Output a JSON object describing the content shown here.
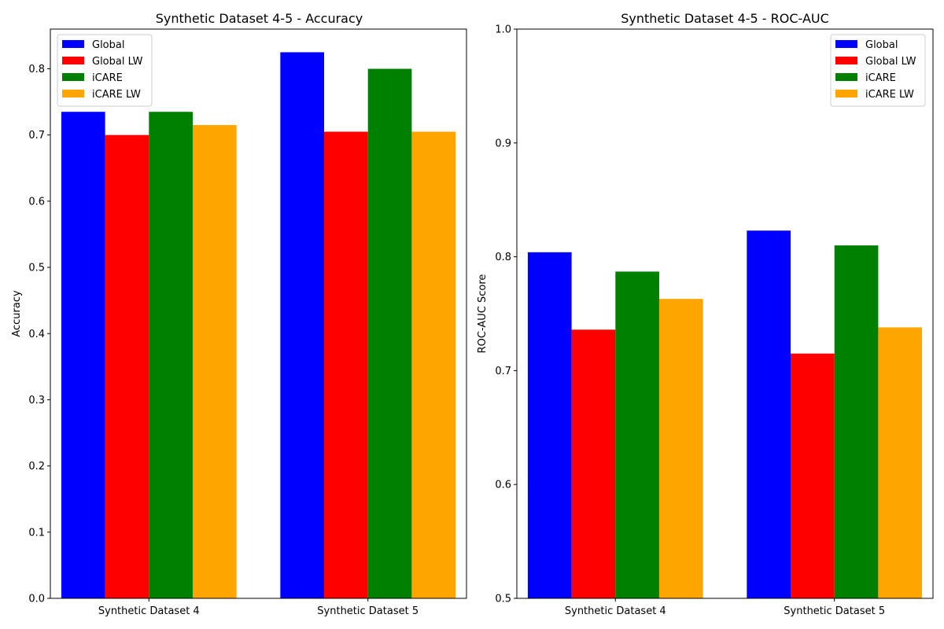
{
  "chart_data": [
    {
      "type": "bar",
      "title": "Synthetic Dataset 4-5 - Accuracy",
      "xlabel": "",
      "ylabel": "Accuracy",
      "categories": [
        "Synthetic Dataset 4",
        "Synthetic Dataset 5"
      ],
      "ylim": [
        0,
        0.86
      ],
      "yticks": [
        "0.0",
        "0.1",
        "0.2",
        "0.3",
        "0.4",
        "0.5",
        "0.6",
        "0.7",
        "0.8"
      ],
      "legend_position": "top-left",
      "grid": false,
      "series": [
        {
          "name": "Global",
          "color": "#0000ff",
          "values": [
            0.735,
            0.825
          ]
        },
        {
          "name": "Global LW",
          "color": "#ff0000",
          "values": [
            0.7,
            0.705
          ]
        },
        {
          "name": "iCARE",
          "color": "#008000",
          "values": [
            0.735,
            0.8
          ]
        },
        {
          "name": "iCARE LW",
          "color": "#ffa500",
          "values": [
            0.715,
            0.705
          ]
        }
      ]
    },
    {
      "type": "bar",
      "title": "Synthetic Dataset 4-5 - ROC-AUC",
      "xlabel": "",
      "ylabel": "ROC-AUC Score",
      "categories": [
        "Synthetic Dataset 4",
        "Synthetic Dataset 5"
      ],
      "ylim": [
        0.5,
        1.0
      ],
      "yticks": [
        "0.5",
        "0.6",
        "0.7",
        "0.8",
        "0.9",
        "1.0"
      ],
      "legend_position": "top-right",
      "grid": false,
      "series": [
        {
          "name": "Global",
          "color": "#0000ff",
          "values": [
            0.804,
            0.823
          ]
        },
        {
          "name": "Global LW",
          "color": "#ff0000",
          "values": [
            0.736,
            0.715
          ]
        },
        {
          "name": "iCARE",
          "color": "#008000",
          "values": [
            0.787,
            0.81
          ]
        },
        {
          "name": "iCARE LW",
          "color": "#ffa500",
          "values": [
            0.763,
            0.738
          ]
        }
      ]
    }
  ]
}
